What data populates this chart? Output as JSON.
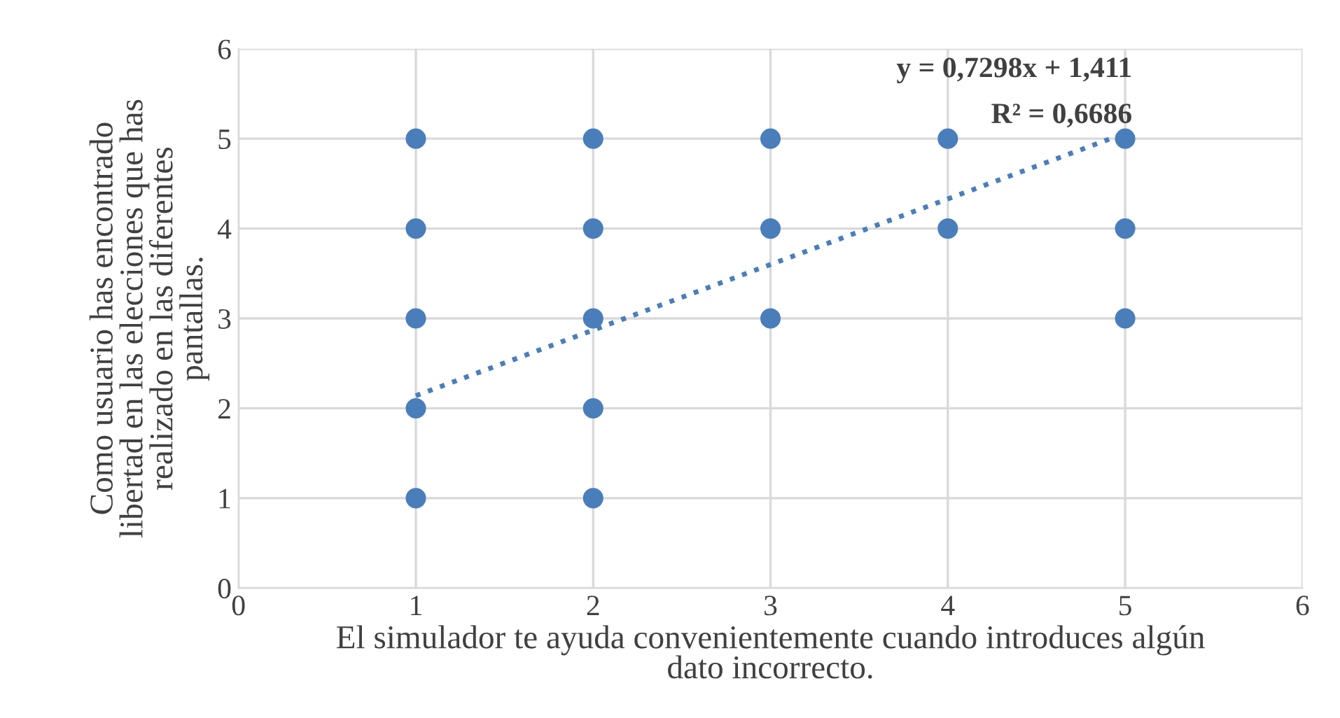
{
  "chart_data": {
    "type": "scatter",
    "xlabel": "El simulador te ayuda convenientemente cuando introduces algún\ndato incorrecto.",
    "ylabel": "Como usuario has encontrado\nlibertad en las elecciones que has\nrealizado en las diferentes\npantallas.",
    "series": [
      {
        "color": "#4a7ebb",
        "x": [
          1,
          1,
          1,
          1,
          1,
          2,
          2,
          2,
          2,
          2,
          3,
          3,
          3,
          4,
          4,
          5,
          5,
          5
        ],
        "values": [
          5,
          4,
          3,
          2,
          1,
          5,
          4,
          3,
          2,
          1,
          5,
          4,
          3,
          5,
          4,
          5,
          4,
          3
        ]
      },
      {
        "type": "line",
        "color": "#4a7ebb",
        "line_style": "dotted",
        "marker": "none",
        "x": [
          1,
          5
        ],
        "values": [
          2.14,
          5.06
        ]
      }
    ],
    "annotations": [
      "y = 0,7298x + 1,411",
      "R² = 0,6686"
    ],
    "xlim": [
      0,
      6
    ],
    "xticks": [
      0,
      1,
      2,
      3,
      4,
      5,
      6
    ],
    "ylim": [
      0,
      6
    ],
    "yticks": [
      0,
      1,
      2,
      3,
      4,
      5,
      6
    ],
    "grid": true,
    "marker": "circle",
    "legend": false
  }
}
